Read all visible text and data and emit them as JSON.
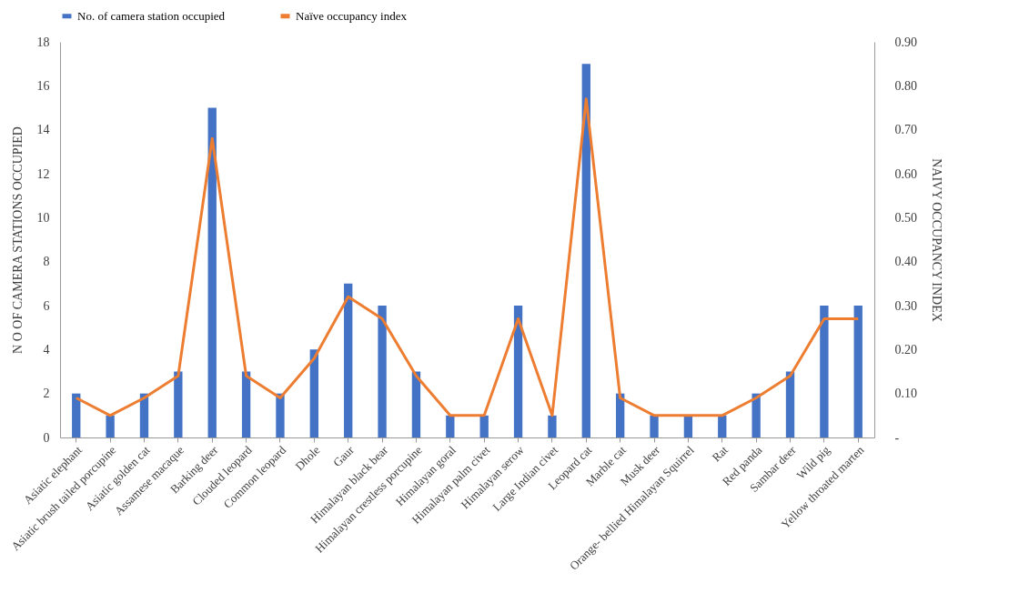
{
  "chart_data": {
    "type": "bar",
    "ylabel": "N O OF CAMERA STATIONS OCCUPIED",
    "y2label": "NAIVY OCCUPANCY INDEX",
    "categories": [
      "Asiatic elephant",
      "Asiatic brush tailed porcupine",
      "Asiatic golden cat",
      "Assamese macaque",
      "Barking deer",
      "Clouded leopard",
      "Common leopard",
      "Dhole",
      "Gaur",
      "Himalayan black bear",
      "Himalayan crestless porcupine",
      "Himalayan goral",
      "Himalayan palm civet",
      "Himalayan serow",
      "Large Indian civet",
      "Leopard cat",
      "Marble cat",
      "Musk deer",
      "Orange- bellied Himalayan Squirrel",
      "Rat",
      "Red panda",
      "Sambar deer",
      "Wild pig",
      "Yellow throated marten"
    ],
    "series": [
      {
        "name": "No. of camera station occupied",
        "color": "#4472c4",
        "values": [
          2,
          1,
          2,
          3,
          15,
          3,
          2,
          4,
          7,
          6,
          3,
          1,
          1,
          6,
          1,
          17,
          2,
          1,
          1,
          1,
          2,
          3,
          6,
          6
        ]
      },
      {
        "name": "Naïve occupancy index",
        "type": "line",
        "axis": "y2",
        "color": "#ed7d31",
        "values": [
          0.09,
          0.05,
          0.09,
          0.14,
          0.68,
          0.14,
          0.09,
          0.18,
          0.32,
          0.27,
          0.14,
          0.05,
          0.05,
          0.27,
          0.05,
          0.77,
          0.09,
          0.05,
          0.05,
          0.05,
          0.09,
          0.14,
          0.27,
          0.27
        ]
      }
    ],
    "ylim": [
      0,
      18
    ],
    "yticks": [
      0,
      2,
      4,
      6,
      8,
      10,
      12,
      14,
      16,
      18
    ],
    "y2lim": [
      0,
      0.9
    ],
    "y2ticks": [
      {
        "value": 0,
        "label": "-"
      },
      {
        "value": 0.1,
        "label": "0.10"
      },
      {
        "value": 0.2,
        "label": "0.20"
      },
      {
        "value": 0.3,
        "label": "0.30"
      },
      {
        "value": 0.4,
        "label": "0.40"
      },
      {
        "value": 0.5,
        "label": "0.50"
      },
      {
        "value": 0.6,
        "label": "0.60"
      },
      {
        "value": 0.7,
        "label": "0.70"
      },
      {
        "value": 0.8,
        "label": "0.80"
      },
      {
        "value": 0.9,
        "label": "0.90"
      }
    ],
    "grid": false,
    "legend": "top",
    "marker": "none",
    "line_style": "solid"
  }
}
